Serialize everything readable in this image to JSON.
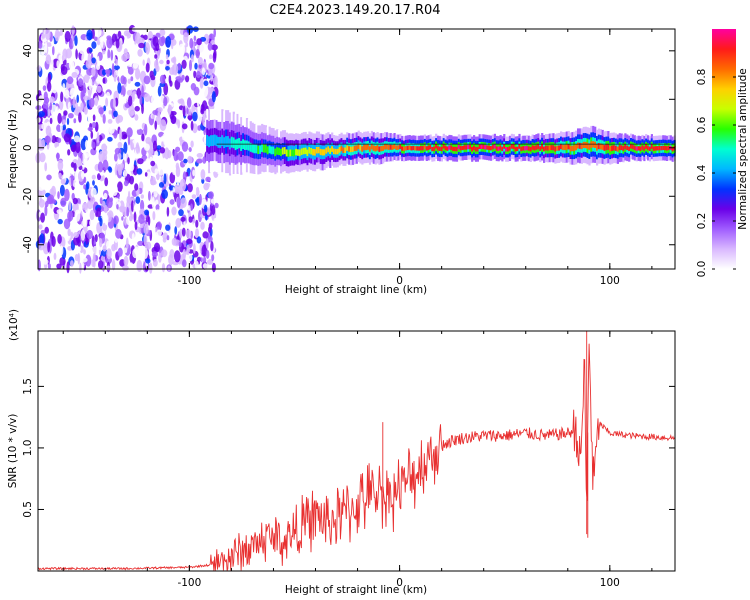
{
  "title": "C2E4.2023.149.20.17.R04",
  "chart_data": [
    {
      "type": "heatmap",
      "xlabel": "Height of straight line (km)",
      "ylabel": "Frequency (Hz)",
      "xlim": [
        -172,
        131
      ],
      "ylim": [
        -50,
        49
      ],
      "xticks": [
        -100,
        0,
        100
      ],
      "yticks": [
        -40,
        -20,
        0,
        20,
        40
      ],
      "colorbar": {
        "label": "Normalized spectral amplitude",
        "range": [
          0,
          1
        ],
        "ticks": [
          0.0,
          0.2,
          0.4,
          0.6,
          0.8
        ],
        "colors": [
          "#ffffff",
          "#d9b8ff",
          "#a05cff",
          "#6a00e8",
          "#0033ff",
          "#00b8ff",
          "#00ffd0",
          "#28ff00",
          "#c8ff00",
          "#ffd000",
          "#ff6a00",
          "#ff1a1a",
          "#ff00a0"
        ]
      },
      "description_points": {
        "noise_region_x": [
          -172,
          -93
        ],
        "signal_start_x": -92,
        "ridge_x": [
          -92,
          -80,
          -70,
          -60,
          -50,
          -40,
          -30,
          -20,
          -10,
          0,
          10,
          20,
          40,
          60,
          80,
          90,
          100,
          110,
          120,
          131
        ],
        "ridge_freq": [
          3,
          2,
          0,
          -1.5,
          -2,
          -1.5,
          -1,
          0,
          0,
          0,
          0,
          0,
          0,
          0,
          0,
          1,
          0,
          0,
          0,
          0
        ],
        "ridge_amp": [
          0.45,
          0.5,
          0.55,
          0.6,
          0.7,
          0.75,
          0.8,
          0.85,
          0.88,
          0.9,
          0.95,
          0.97,
          0.98,
          0.97,
          0.92,
          0.9,
          0.93,
          0.96,
          0.97,
          0.97
        ],
        "ridge_halfwidth": [
          5,
          5,
          4,
          3.5,
          3,
          3,
          2.5,
          2.5,
          2.5,
          2,
          2,
          2,
          2,
          2,
          2.5,
          3,
          2.5,
          2,
          2,
          2
        ]
      }
    },
    {
      "type": "line",
      "xlabel": "Height of straight line (km)",
      "ylabel": "SNR (10 * v/v)",
      "yscale_label": "(x10⁴)",
      "xlim": [
        -172,
        131
      ],
      "ylim": [
        0,
        1.95
      ],
      "xticks": [
        -100,
        0,
        100
      ],
      "yticks": [
        0.5,
        1.0,
        1.5
      ],
      "ytick_labels": [
        "0.5",
        "1.0",
        "1.5"
      ],
      "color": "#e83030",
      "x": [
        -172,
        -130,
        -100,
        -90,
        -85,
        -80,
        -75,
        -70,
        -65,
        -60,
        -55,
        -50,
        -45,
        -40,
        -35,
        -30,
        -25,
        -20,
        -15,
        -10,
        -5,
        0,
        5,
        10,
        15,
        20,
        25,
        30,
        40,
        50,
        60,
        70,
        80,
        84,
        86,
        88,
        89,
        90,
        92,
        95,
        100,
        110,
        120,
        131
      ],
      "y": [
        0.02,
        0.02,
        0.03,
        0.05,
        0.08,
        0.12,
        0.16,
        0.2,
        0.26,
        0.28,
        0.24,
        0.32,
        0.38,
        0.45,
        0.4,
        0.42,
        0.48,
        0.55,
        0.6,
        0.65,
        0.62,
        0.66,
        0.75,
        0.85,
        0.95,
        1.02,
        1.06,
        1.08,
        1.1,
        1.1,
        1.12,
        1.1,
        1.12,
        1.15,
        0.85,
        1.7,
        0.3,
        1.95,
        0.7,
        1.2,
        1.12,
        1.1,
        1.09,
        1.08
      ],
      "annotations": [
        {
          "x": -8,
          "y": 1.21
        },
        {
          "x": 89,
          "y": 1.95
        },
        {
          "x": 89.5,
          "y": 0.27
        }
      ]
    }
  ]
}
